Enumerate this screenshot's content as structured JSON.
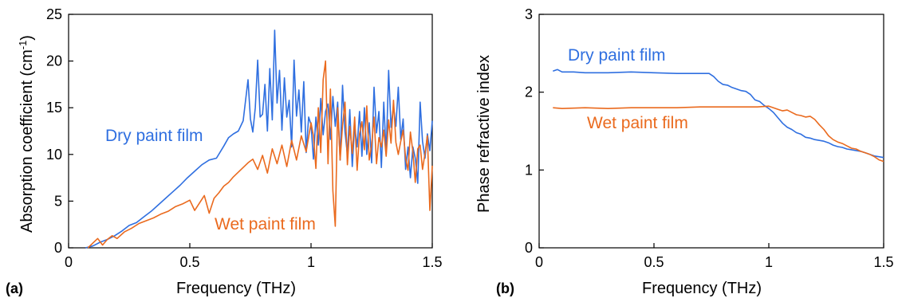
{
  "chart_data": [
    {
      "type": "line",
      "panel_label": "(a)",
      "xlabel": "Frequency (THz)",
      "ylabel": "Absorption coefficient (cm",
      "ylabel_sup": "-1",
      "ylabel_close": ")",
      "xlim": [
        0,
        1.5
      ],
      "ylim": [
        0,
        25
      ],
      "xticks": [
        "0",
        "0.5",
        "1",
        "1.5"
      ],
      "yticks": [
        "0",
        "5",
        "10",
        "15",
        "20",
        "25"
      ],
      "grid": false,
      "series": [
        {
          "name": "Dry paint film",
          "color": "#2f6fe0",
          "x": [
            0.07,
            0.1,
            0.13,
            0.16,
            0.19,
            0.22,
            0.25,
            0.28,
            0.31,
            0.34,
            0.37,
            0.4,
            0.43,
            0.46,
            0.49,
            0.52,
            0.55,
            0.58,
            0.61,
            0.64,
            0.66,
            0.68,
            0.7,
            0.72,
            0.74,
            0.75,
            0.76,
            0.77,
            0.78,
            0.79,
            0.8,
            0.81,
            0.82,
            0.83,
            0.84,
            0.85,
            0.86,
            0.87,
            0.88,
            0.89,
            0.9,
            0.91,
            0.92,
            0.93,
            0.94,
            0.95,
            0.96,
            0.97,
            0.98,
            0.99,
            1.0,
            1.01,
            1.02,
            1.03,
            1.04,
            1.05,
            1.06,
            1.07,
            1.08,
            1.09,
            1.1,
            1.11,
            1.12,
            1.13,
            1.14,
            1.15,
            1.16,
            1.17,
            1.18,
            1.19,
            1.2,
            1.21,
            1.22,
            1.23,
            1.24,
            1.25,
            1.26,
            1.27,
            1.28,
            1.29,
            1.3,
            1.31,
            1.32,
            1.33,
            1.34,
            1.35,
            1.36,
            1.37,
            1.38,
            1.39,
            1.4,
            1.41,
            1.42,
            1.43,
            1.44,
            1.45,
            1.46,
            1.47,
            1.48,
            1.49,
            1.5
          ],
          "y": [
            0,
            0.2,
            0.6,
            0.9,
            1.3,
            1.8,
            2.4,
            2.7,
            3.3,
            3.9,
            4.6,
            5.3,
            6.0,
            6.7,
            7.5,
            8.2,
            8.9,
            9.4,
            9.6,
            10.9,
            11.8,
            12.2,
            12.5,
            13.6,
            18.0,
            13.8,
            12.4,
            15.0,
            20.1,
            14.0,
            14.3,
            17.5,
            12.5,
            19.2,
            13.7,
            23.3,
            15.5,
            19.0,
            12.6,
            18.2,
            14.0,
            15.8,
            10.8,
            20.1,
            14.1,
            16.9,
            12.4,
            17.8,
            10.2,
            14.0,
            13.2,
            9.5,
            14.0,
            11.0,
            16.0,
            12.1,
            14.6,
            15.4,
            11.6,
            16.2,
            13.0,
            15.6,
            9.4,
            17.4,
            12.4,
            10.0,
            14.8,
            8.7,
            13.1,
            10.8,
            14.6,
            9.8,
            15.0,
            10.0,
            13.4,
            9.1,
            17.2,
            12.3,
            14.6,
            8.6,
            15.6,
            10.0,
            19.0,
            12.9,
            15.2,
            13.0,
            17.2,
            11.6,
            13.8,
            8.4,
            10.8,
            7.5,
            10.8,
            9.6,
            6.9,
            15.6,
            11.4,
            9.6,
            12.2,
            10.4,
            13.6
          ]
        },
        {
          "name": "Wet paint film",
          "color": "#ea6a1e",
          "x": [
            0.08,
            0.1,
            0.12,
            0.14,
            0.16,
            0.18,
            0.2,
            0.23,
            0.26,
            0.29,
            0.32,
            0.35,
            0.38,
            0.41,
            0.44,
            0.47,
            0.5,
            0.52,
            0.54,
            0.56,
            0.58,
            0.6,
            0.62,
            0.64,
            0.66,
            0.68,
            0.7,
            0.72,
            0.74,
            0.76,
            0.78,
            0.8,
            0.82,
            0.84,
            0.86,
            0.88,
            0.9,
            0.92,
            0.94,
            0.96,
            0.98,
            1.0,
            1.01,
            1.02,
            1.03,
            1.04,
            1.05,
            1.06,
            1.07,
            1.08,
            1.09,
            1.1,
            1.11,
            1.12,
            1.13,
            1.14,
            1.15,
            1.16,
            1.17,
            1.18,
            1.19,
            1.2,
            1.21,
            1.22,
            1.23,
            1.24,
            1.25,
            1.26,
            1.27,
            1.28,
            1.29,
            1.3,
            1.31,
            1.32,
            1.33,
            1.34,
            1.35,
            1.36,
            1.37,
            1.38,
            1.39,
            1.4,
            1.41,
            1.42,
            1.43,
            1.44,
            1.45,
            1.46,
            1.47,
            1.48,
            1.49,
            1.5
          ],
          "y": [
            0,
            0.5,
            1.0,
            0.3,
            0.9,
            1.3,
            1.0,
            1.7,
            2.1,
            2.6,
            2.9,
            3.2,
            3.6,
            3.9,
            4.4,
            4.7,
            5.1,
            4.0,
            4.8,
            5.6,
            3.7,
            5.3,
            5.9,
            6.6,
            7.0,
            7.6,
            8.1,
            8.6,
            9.1,
            9.5,
            8.4,
            9.9,
            8.0,
            10.6,
            9.0,
            11.0,
            8.7,
            11.5,
            9.4,
            12.0,
            10.3,
            13.4,
            12.0,
            8.5,
            15.0,
            10.2,
            18.0,
            20.0,
            9.0,
            17.0,
            6.1,
            2.3,
            15.0,
            9.4,
            13.1,
            15.6,
            8.9,
            13.0,
            10.1,
            14.0,
            8.3,
            12.2,
            13.5,
            10.5,
            15.2,
            9.4,
            11.0,
            14.0,
            9.0,
            11.8,
            10.8,
            12.6,
            9.8,
            13.7,
            11.2,
            15.8,
            11.3,
            10.0,
            11.4,
            12.6,
            9.6,
            8.3,
            12.4,
            10.3,
            7.0,
            10.6,
            11.0,
            8.4,
            10.1,
            12.0,
            4.0,
            8.8
          ]
        }
      ],
      "annotations": [
        {
          "text": "Dry paint film",
          "color": "#2f6fe0"
        },
        {
          "text": "Wet paint film",
          "color": "#ea6a1e"
        }
      ]
    },
    {
      "type": "line",
      "panel_label": "(b)",
      "xlabel": "Frequency (THz)",
      "ylabel": "Phase refractive index",
      "xlim": [
        0,
        1.5
      ],
      "ylim": [
        0,
        3
      ],
      "xticks": [
        "0",
        "0.5",
        "1",
        "1.5"
      ],
      "yticks": [
        "0",
        "1",
        "2",
        "3"
      ],
      "grid": false,
      "series": [
        {
          "name": "Dry paint film",
          "color": "#2f6fe0",
          "x": [
            0.06,
            0.08,
            0.1,
            0.15,
            0.2,
            0.3,
            0.4,
            0.5,
            0.6,
            0.7,
            0.74,
            0.76,
            0.78,
            0.8,
            0.82,
            0.84,
            0.86,
            0.88,
            0.9,
            0.92,
            0.94,
            0.96,
            0.98,
            1.0,
            1.02,
            1.04,
            1.06,
            1.08,
            1.1,
            1.12,
            1.14,
            1.16,
            1.18,
            1.2,
            1.22,
            1.24,
            1.26,
            1.28,
            1.3,
            1.32,
            1.34,
            1.36,
            1.38,
            1.4,
            1.42,
            1.44,
            1.46,
            1.48,
            1.5
          ],
          "y": [
            2.27,
            2.29,
            2.26,
            2.26,
            2.25,
            2.25,
            2.26,
            2.25,
            2.24,
            2.24,
            2.24,
            2.2,
            2.14,
            2.1,
            2.09,
            2.06,
            2.04,
            2.02,
            2.01,
            1.97,
            1.9,
            1.88,
            1.83,
            1.79,
            1.74,
            1.67,
            1.6,
            1.55,
            1.52,
            1.48,
            1.46,
            1.42,
            1.41,
            1.39,
            1.38,
            1.37,
            1.35,
            1.32,
            1.3,
            1.29,
            1.27,
            1.26,
            1.25,
            1.24,
            1.22,
            1.2,
            1.18,
            1.17,
            1.16
          ]
        },
        {
          "name": "Wet paint film",
          "color": "#ea6a1e",
          "x": [
            0.06,
            0.1,
            0.2,
            0.3,
            0.4,
            0.5,
            0.6,
            0.7,
            0.8,
            0.9,
            0.95,
            1.0,
            1.02,
            1.04,
            1.06,
            1.08,
            1.1,
            1.12,
            1.14,
            1.16,
            1.18,
            1.2,
            1.22,
            1.24,
            1.26,
            1.28,
            1.3,
            1.32,
            1.34,
            1.36,
            1.38,
            1.4,
            1.42,
            1.44,
            1.46,
            1.48,
            1.5
          ],
          "y": [
            1.8,
            1.79,
            1.8,
            1.79,
            1.8,
            1.8,
            1.8,
            1.81,
            1.81,
            1.81,
            1.81,
            1.82,
            1.8,
            1.78,
            1.76,
            1.77,
            1.74,
            1.71,
            1.7,
            1.68,
            1.69,
            1.65,
            1.58,
            1.52,
            1.44,
            1.39,
            1.36,
            1.34,
            1.31,
            1.28,
            1.27,
            1.24,
            1.22,
            1.2,
            1.17,
            1.13,
            1.11
          ]
        }
      ],
      "annotations": [
        {
          "text": "Dry paint film",
          "color": "#2f6fe0"
        },
        {
          "text": "Wet paint film",
          "color": "#ea6a1e"
        }
      ]
    }
  ]
}
